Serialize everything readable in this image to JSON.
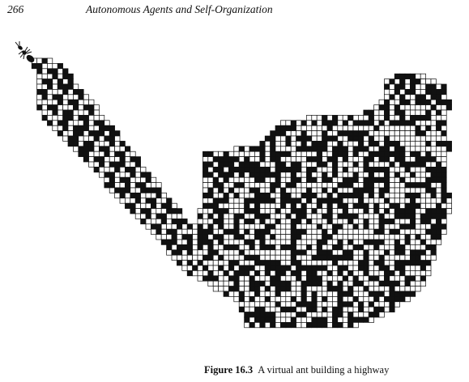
{
  "header": {
    "page_number": "266",
    "running_title": "Autonomous Agents and Self-Organization"
  },
  "figure": {
    "subject_icon": "ant-icon",
    "caption_label": "Figure 16.3",
    "caption_text": "A virtual ant building a highway"
  }
}
